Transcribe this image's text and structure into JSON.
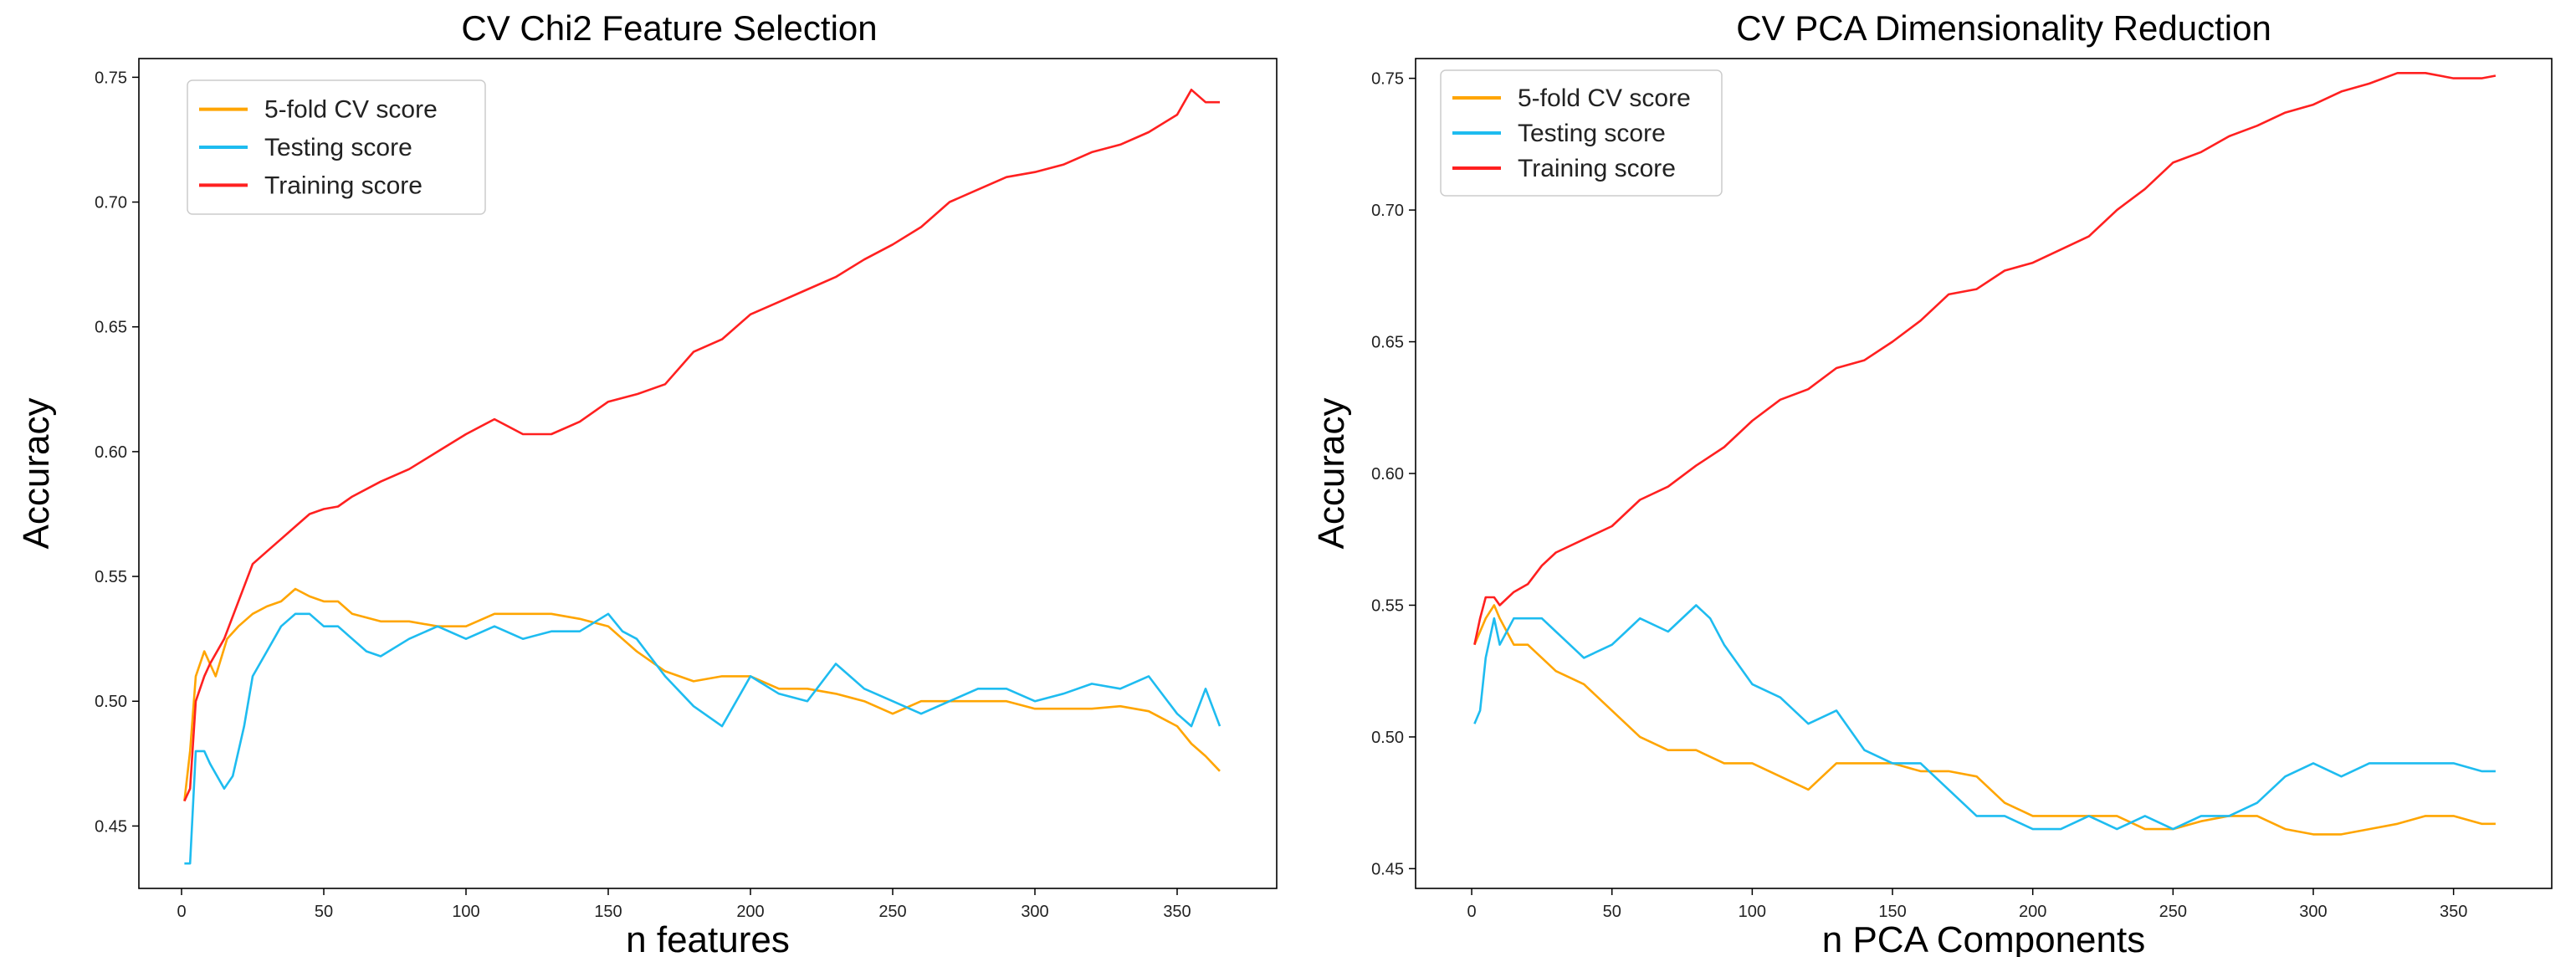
{
  "chart_data": [
    {
      "type": "line",
      "title": "CV Chi2 Feature Selection",
      "xlabel": "n features",
      "ylabel": "Accuracy",
      "xlim": [
        -15,
        385
      ],
      "ylim": [
        0.425,
        0.7575
      ],
      "xticks": [
        0,
        50,
        100,
        150,
        200,
        250,
        300,
        350
      ],
      "yticks": [
        0.45,
        0.5,
        0.55,
        0.6,
        0.65,
        0.7,
        0.75
      ],
      "legend_position": "upper-left",
      "series": [
        {
          "name": "5-fold CV score",
          "color": "#ffa500",
          "x": [
            1,
            3,
            5,
            8,
            12,
            16,
            20,
            25,
            30,
            35,
            40,
            45,
            50,
            55,
            60,
            70,
            80,
            90,
            100,
            110,
            120,
            130,
            140,
            150,
            155,
            160,
            170,
            180,
            190,
            200,
            210,
            220,
            230,
            240,
            250,
            260,
            270,
            280,
            290,
            300,
            310,
            320,
            330,
            340,
            350,
            355,
            360,
            365
          ],
          "y": [
            0.46,
            0.48,
            0.51,
            0.52,
            0.51,
            0.525,
            0.53,
            0.535,
            0.538,
            0.54,
            0.545,
            0.542,
            0.54,
            0.54,
            0.535,
            0.532,
            0.532,
            0.53,
            0.53,
            0.535,
            0.535,
            0.535,
            0.533,
            0.53,
            0.525,
            0.52,
            0.512,
            0.508,
            0.51,
            0.51,
            0.505,
            0.505,
            0.503,
            0.5,
            0.495,
            0.5,
            0.5,
            0.5,
            0.5,
            0.497,
            0.497,
            0.497,
            0.498,
            0.496,
            0.49,
            0.483,
            0.478,
            0.472
          ]
        },
        {
          "name": "Testing score",
          "color": "#1ebcf0",
          "x": [
            1,
            3,
            5,
            8,
            10,
            15,
            18,
            22,
            25,
            30,
            35,
            40,
            45,
            50,
            55,
            60,
            65,
            70,
            80,
            90,
            100,
            110,
            120,
            130,
            140,
            150,
            155,
            160,
            170,
            180,
            190,
            200,
            210,
            220,
            230,
            240,
            250,
            260,
            270,
            280,
            290,
            300,
            310,
            320,
            330,
            340,
            350,
            355,
            360,
            365
          ],
          "y": [
            0.435,
            0.435,
            0.48,
            0.48,
            0.475,
            0.465,
            0.47,
            0.49,
            0.51,
            0.52,
            0.53,
            0.535,
            0.535,
            0.53,
            0.53,
            0.525,
            0.52,
            0.518,
            0.525,
            0.53,
            0.525,
            0.53,
            0.525,
            0.528,
            0.528,
            0.535,
            0.528,
            0.525,
            0.51,
            0.498,
            0.49,
            0.51,
            0.503,
            0.5,
            0.515,
            0.505,
            0.5,
            0.495,
            0.5,
            0.505,
            0.505,
            0.5,
            0.503,
            0.507,
            0.505,
            0.51,
            0.495,
            0.49,
            0.505,
            0.49
          ]
        },
        {
          "name": "Training score",
          "color": "#ff2020",
          "x": [
            1,
            3,
            5,
            8,
            10,
            15,
            20,
            25,
            30,
            35,
            40,
            45,
            50,
            55,
            60,
            70,
            80,
            90,
            100,
            110,
            120,
            130,
            140,
            150,
            160,
            170,
            180,
            190,
            200,
            210,
            220,
            230,
            240,
            250,
            260,
            270,
            280,
            290,
            300,
            310,
            320,
            330,
            340,
            350,
            355,
            360,
            365
          ],
          "y": [
            0.46,
            0.465,
            0.5,
            0.51,
            0.515,
            0.525,
            0.54,
            0.555,
            0.56,
            0.565,
            0.57,
            0.575,
            0.577,
            0.578,
            0.582,
            0.588,
            0.593,
            0.6,
            0.607,
            0.613,
            0.607,
            0.607,
            0.612,
            0.62,
            0.623,
            0.627,
            0.64,
            0.645,
            0.655,
            0.66,
            0.665,
            0.67,
            0.677,
            0.683,
            0.69,
            0.7,
            0.705,
            0.71,
            0.712,
            0.715,
            0.72,
            0.723,
            0.728,
            0.735,
            0.745,
            0.74,
            0.74
          ]
        }
      ]
    },
    {
      "type": "line",
      "title": "CV PCA Dimensionality Reduction",
      "xlabel": "n PCA Components",
      "ylabel": "Accuracy",
      "xlim": [
        -20,
        385
      ],
      "ylim": [
        0.4425,
        0.7575
      ],
      "xticks": [
        0,
        50,
        100,
        150,
        200,
        250,
        300,
        350
      ],
      "yticks": [
        0.45,
        0.5,
        0.55,
        0.6,
        0.65,
        0.7,
        0.75
      ],
      "legend_position": "upper-left",
      "series": [
        {
          "name": "5-fold CV score",
          "color": "#ffa500",
          "x": [
            1,
            3,
            5,
            8,
            10,
            15,
            20,
            25,
            30,
            40,
            50,
            60,
            70,
            80,
            90,
            100,
            110,
            120,
            130,
            140,
            150,
            160,
            170,
            180,
            190,
            200,
            210,
            220,
            230,
            240,
            250,
            260,
            270,
            280,
            290,
            300,
            310,
            320,
            330,
            340,
            350,
            360,
            365
          ],
          "y": [
            0.535,
            0.54,
            0.545,
            0.55,
            0.545,
            0.535,
            0.535,
            0.53,
            0.525,
            0.52,
            0.51,
            0.5,
            0.495,
            0.495,
            0.49,
            0.49,
            0.485,
            0.48,
            0.49,
            0.49,
            0.49,
            0.487,
            0.487,
            0.485,
            0.475,
            0.47,
            0.47,
            0.47,
            0.47,
            0.465,
            0.465,
            0.468,
            0.47,
            0.47,
            0.465,
            0.463,
            0.463,
            0.465,
            0.467,
            0.47,
            0.47,
            0.467,
            0.467
          ]
        },
        {
          "name": "Testing score",
          "color": "#1ebcf0",
          "x": [
            1,
            3,
            5,
            8,
            10,
            15,
            20,
            25,
            30,
            40,
            50,
            55,
            60,
            70,
            80,
            85,
            90,
            100,
            110,
            120,
            130,
            140,
            150,
            160,
            170,
            180,
            190,
            200,
            210,
            220,
            230,
            240,
            250,
            260,
            270,
            280,
            290,
            300,
            310,
            320,
            330,
            340,
            350,
            360,
            365
          ],
          "y": [
            0.505,
            0.51,
            0.53,
            0.545,
            0.535,
            0.545,
            0.545,
            0.545,
            0.54,
            0.53,
            0.535,
            0.54,
            0.545,
            0.54,
            0.55,
            0.545,
            0.535,
            0.52,
            0.515,
            0.505,
            0.51,
            0.495,
            0.49,
            0.49,
            0.48,
            0.47,
            0.47,
            0.465,
            0.465,
            0.47,
            0.465,
            0.47,
            0.465,
            0.47,
            0.47,
            0.475,
            0.485,
            0.49,
            0.485,
            0.49,
            0.49,
            0.49,
            0.49,
            0.487,
            0.487
          ]
        },
        {
          "name": "Training score",
          "color": "#ff2020",
          "x": [
            1,
            3,
            5,
            8,
            10,
            15,
            20,
            25,
            30,
            40,
            50,
            60,
            70,
            80,
            90,
            100,
            110,
            120,
            130,
            140,
            150,
            160,
            170,
            180,
            190,
            200,
            210,
            220,
            230,
            240,
            250,
            260,
            270,
            280,
            290,
            300,
            310,
            320,
            330,
            340,
            350,
            360,
            365
          ],
          "y": [
            0.535,
            0.545,
            0.553,
            0.553,
            0.55,
            0.555,
            0.558,
            0.565,
            0.57,
            0.575,
            0.58,
            0.59,
            0.595,
            0.603,
            0.61,
            0.62,
            0.628,
            0.632,
            0.64,
            0.643,
            0.65,
            0.658,
            0.668,
            0.67,
            0.677,
            0.68,
            0.685,
            0.69,
            0.7,
            0.708,
            0.718,
            0.722,
            0.728,
            0.732,
            0.737,
            0.74,
            0.745,
            0.748,
            0.752,
            0.752,
            0.75,
            0.75,
            0.751
          ]
        }
      ]
    }
  ]
}
